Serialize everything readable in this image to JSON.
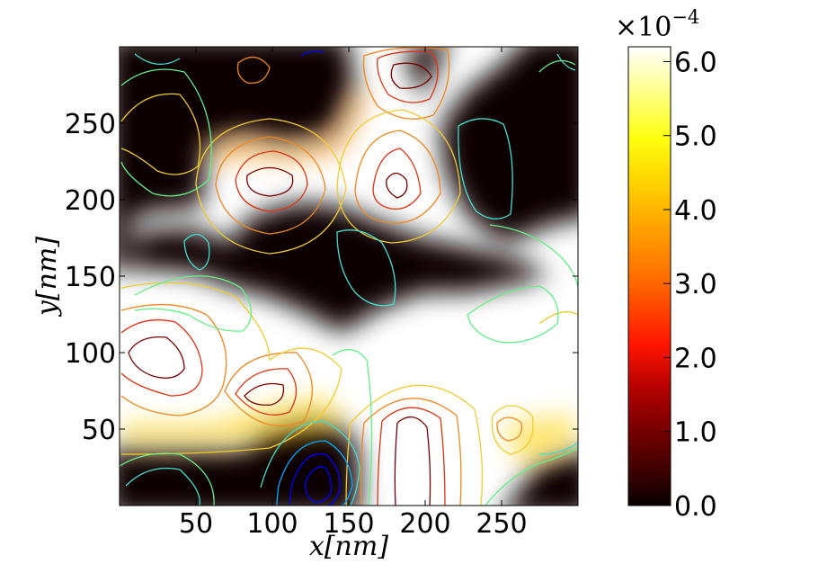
{
  "chart_data": {
    "type": "heatmap",
    "title": "",
    "xlabel": "x[nm]",
    "ylabel": "y[nm]",
    "xlim": [
      0,
      300
    ],
    "ylim": [
      0,
      300
    ],
    "x_ticks": [
      50,
      100,
      150,
      200,
      250
    ],
    "x_tick_labels": [
      "50",
      "100",
      "150",
      "200",
      "250"
    ],
    "y_ticks": [
      50,
      100,
      150,
      200,
      250
    ],
    "y_tick_labels": [
      "50",
      "100",
      "150",
      "200",
      "250"
    ],
    "grid": false,
    "colormap": "hot",
    "colorbar": {
      "min": 0.0,
      "max": 0.00062,
      "multiplier_label": "×10",
      "multiplier_exponent": "−4",
      "ticks": [
        0.0,
        1.0,
        2.0,
        3.0,
        4.0,
        5.0,
        6.0
      ],
      "tick_labels": [
        "0.0",
        "1.0",
        "2.0",
        "3.0",
        "4.0",
        "5.0",
        "6.0"
      ]
    },
    "contour_colors": [
      "#0000ff",
      "#00aaff",
      "#44ddcc",
      "#66ee88",
      "#ccee44",
      "#eecc33",
      "#ee8822",
      "#dd3311",
      "#770000"
    ]
  }
}
